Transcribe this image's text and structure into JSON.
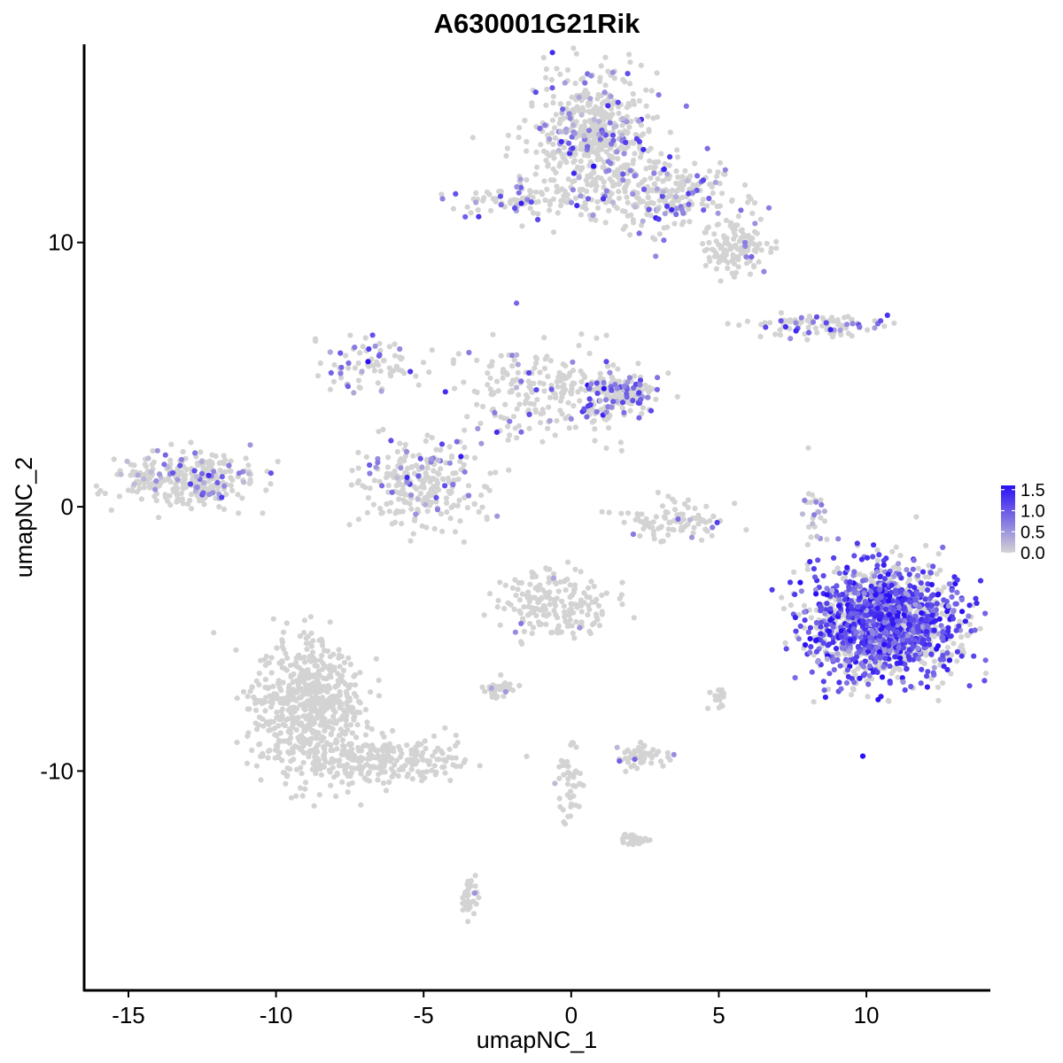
{
  "chart_data": {
    "type": "scatter",
    "title": "A630001G21Rik",
    "xlabel": "umapNC_1",
    "ylabel": "umapNC_2",
    "xlim": [
      -16.5,
      14.2
    ],
    "ylim": [
      -18.3,
      17.5
    ],
    "x_ticks": [
      -15,
      -10,
      -5,
      0,
      5,
      10
    ],
    "x_tick_labels": [
      "-15",
      "-10",
      "-5",
      "0",
      "5",
      "10"
    ],
    "y_ticks": [
      -10,
      0,
      10
    ],
    "y_tick_labels": [
      "-10",
      "0",
      "10"
    ],
    "grid": false,
    "legend_placement": "right",
    "color_low": "#d3d3d3",
    "color_high": "#2a10f5",
    "color_scale": {
      "min": 0,
      "max": 1.6,
      "ticks": [
        0.0,
        0.5,
        1.0,
        1.5
      ],
      "tick_labels": [
        "0.0",
        "0.5",
        "1.0",
        "1.5"
      ]
    },
    "clusters": [
      {
        "id": "top-upper",
        "x": 0.7,
        "y": 14.0,
        "sx": 1.1,
        "sy": 1.2,
        "n": 520,
        "expr_frac": 0.16,
        "expr_mean": 0.7
      },
      {
        "id": "top-arm",
        "x": 3.3,
        "y": 11.8,
        "sx": 1.3,
        "sy": 0.7,
        "n": 260,
        "expr_frac": 0.18,
        "expr_mean": 0.8
      },
      {
        "id": "top-right-blob",
        "x": 5.5,
        "y": 9.8,
        "sx": 0.55,
        "sy": 0.45,
        "n": 120,
        "expr_frac": 0.05,
        "expr_mean": 0.6
      },
      {
        "id": "top-left-arm",
        "x": -1.8,
        "y": 11.6,
        "sx": 1.2,
        "sy": 0.35,
        "n": 90,
        "expr_frac": 0.28,
        "expr_mean": 0.8
      },
      {
        "id": "upper-right-streak",
        "x": 8.4,
        "y": 6.9,
        "sx": 1.2,
        "sy": 0.25,
        "n": 90,
        "expr_frac": 0.22,
        "expr_mean": 0.8
      },
      {
        "id": "mid-left-arm",
        "x": -6.8,
        "y": 5.3,
        "sx": 0.9,
        "sy": 0.5,
        "n": 80,
        "expr_frac": 0.22,
        "expr_mean": 0.8
      },
      {
        "id": "mid-center",
        "x": -1.0,
        "y": 4.3,
        "sx": 1.5,
        "sy": 0.9,
        "n": 220,
        "expr_frac": 0.13,
        "expr_mean": 0.7
      },
      {
        "id": "mid-right",
        "x": 1.7,
        "y": 4.2,
        "sx": 0.7,
        "sy": 0.45,
        "n": 160,
        "expr_frac": 0.32,
        "expr_mean": 1.0
      },
      {
        "id": "mid-lower-left",
        "x": -5.1,
        "y": 0.9,
        "sx": 1.0,
        "sy": 0.8,
        "n": 260,
        "expr_frac": 0.15,
        "expr_mean": 0.7
      },
      {
        "id": "left-blob",
        "x": -13.0,
        "y": 1.0,
        "sx": 1.1,
        "sy": 0.55,
        "n": 300,
        "expr_frac": 0.18,
        "expr_mean": 0.6
      },
      {
        "id": "right-small-arc",
        "x": 3.3,
        "y": -0.5,
        "sx": 0.9,
        "sy": 0.45,
        "n": 90,
        "expr_frac": 0.06,
        "expr_mean": 0.6
      },
      {
        "id": "right-vertical",
        "x": 8.2,
        "y": 0.2,
        "sx": 0.22,
        "sy": 0.9,
        "n": 25,
        "expr_frac": 0.3,
        "expr_mean": 0.7
      },
      {
        "id": "large-right-blob",
        "x": 10.6,
        "y": -4.4,
        "sx": 1.25,
        "sy": 1.05,
        "n": 1500,
        "expr_frac": 0.6,
        "expr_mean": 1.1
      },
      {
        "id": "center-cluster",
        "x": -0.5,
        "y": -3.7,
        "sx": 0.9,
        "sy": 0.6,
        "n": 190,
        "expr_frac": 0.03,
        "expr_mean": 0.6
      },
      {
        "id": "lower-left-large",
        "x": -8.9,
        "y": -7.5,
        "sx": 0.95,
        "sy": 1.3,
        "n": 620,
        "expr_frac": 0.0,
        "expr_mean": 0.0
      },
      {
        "id": "lower-left-tail",
        "x": -6.5,
        "y": -9.6,
        "sx": 1.4,
        "sy": 0.45,
        "n": 230,
        "expr_frac": 0.0,
        "expr_mean": 0.0
      },
      {
        "id": "small-center-lower",
        "x": -2.5,
        "y": -6.9,
        "sx": 0.3,
        "sy": 0.15,
        "n": 35,
        "expr_frac": 0.06,
        "expr_mean": 0.6
      },
      {
        "id": "small-blob-lower",
        "x": 2.4,
        "y": -9.4,
        "sx": 0.45,
        "sy": 0.25,
        "n": 55,
        "expr_frac": 0.05,
        "expr_mean": 0.5
      },
      {
        "id": "bottom-right-small",
        "x": 2.2,
        "y": -12.6,
        "sx": 0.3,
        "sy": 0.12,
        "n": 30,
        "expr_frac": 0.0,
        "expr_mean": 0.0
      },
      {
        "id": "bottom-center-stripe",
        "x": -0.1,
        "y": -10.6,
        "sx": 0.25,
        "sy": 0.9,
        "n": 45,
        "expr_frac": 0.03,
        "expr_mean": 0.5
      },
      {
        "id": "bottom-small",
        "x": -3.4,
        "y": -14.8,
        "sx": 0.15,
        "sy": 0.45,
        "n": 35,
        "expr_frac": 0.03,
        "expr_mean": 0.5
      },
      {
        "id": "right-mid-small",
        "x": 5.0,
        "y": -7.2,
        "sx": 0.12,
        "sy": 0.25,
        "n": 15,
        "expr_frac": 0.0,
        "expr_mean": 0.0
      }
    ]
  }
}
